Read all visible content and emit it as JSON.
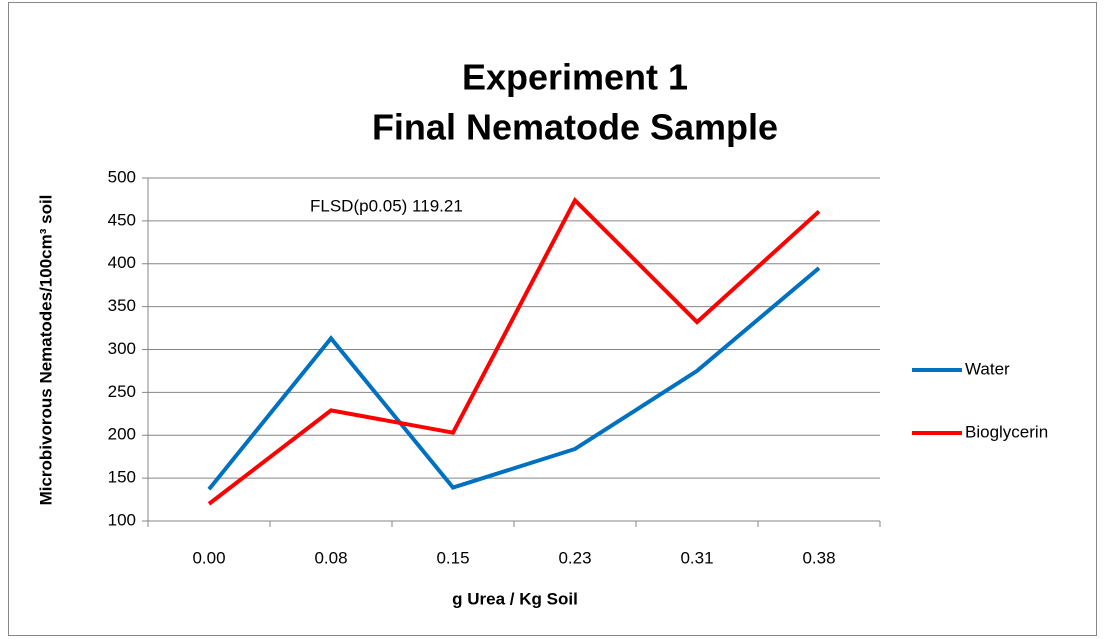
{
  "chart_data": {
    "type": "line",
    "title": [
      "Experiment 1",
      "Final Nematode Sample"
    ],
    "x_label": "g Urea / Kg Soil",
    "y_label": "Microbivorous Nematodes/100cm³  soil",
    "annotation": "FLSD(p0.05) 119.21",
    "categories": [
      "0.00",
      "0.08",
      "0.15",
      "0.23",
      "0.31",
      "0.38"
    ],
    "series": [
      {
        "name": "Water",
        "color": "#0070c0",
        "values": [
          137,
          313,
          139,
          184,
          275,
          395
        ]
      },
      {
        "name": "Bioglycerin",
        "color": "#ff0000",
        "values": [
          120,
          229,
          203,
          474,
          332,
          461
        ]
      }
    ],
    "ylim": [
      100,
      500
    ],
    "yticks": [
      100,
      150,
      200,
      250,
      300,
      350,
      400,
      450,
      500
    ],
    "grid": true,
    "legend": "right"
  }
}
